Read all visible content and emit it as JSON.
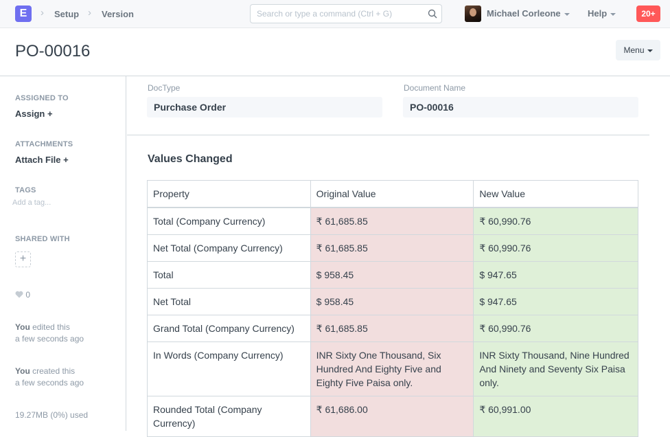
{
  "navbar": {
    "logo_letter": "E",
    "breadcrumbs": [
      "Setup",
      "Version"
    ],
    "search_placeholder": "Search or type a command (Ctrl + G)",
    "user_name": "Michael Corleone",
    "help_label": "Help",
    "notification_count": "20+",
    "colors": {
      "logo": "#6f6ff0",
      "notification": "#ff5858"
    }
  },
  "page": {
    "title": "PO-00016",
    "menu_label": "Menu"
  },
  "sidebar": {
    "assigned_to_label": "ASSIGNED TO",
    "assign_link": "Assign +",
    "attachments_label": "ATTACHMENTS",
    "attach_link": "Attach File +",
    "tags_label": "TAGS",
    "tags_placeholder": "Add a tag...",
    "shared_with_label": "SHARED WITH",
    "share_add": "+",
    "likes": "0",
    "timeline": [
      {
        "who": "You",
        "action": " edited this",
        "when": "a few seconds ago"
      },
      {
        "who": "You",
        "action": " created this",
        "when": "a few seconds ago"
      }
    ],
    "usage": "19.27MB (0%) used"
  },
  "main": {
    "doctype_label": "DocType",
    "doctype_value": "Purchase Order",
    "docname_label": "Document Name",
    "docname_value": "PO-00016",
    "section_title": "Values Changed",
    "table": {
      "headers": [
        "Property",
        "Original Value",
        "New Value"
      ],
      "rows": [
        [
          "Total (Company Currency)",
          "₹ 61,685.85",
          "₹ 60,990.76"
        ],
        [
          "Net Total (Company Currency)",
          "₹ 61,685.85",
          "₹ 60,990.76"
        ],
        [
          "Total",
          "$ 958.45",
          "$ 947.65"
        ],
        [
          "Net Total",
          "$ 958.45",
          "$ 947.65"
        ],
        [
          "Grand Total (Company Currency)",
          "₹ 61,685.85",
          "₹ 60,990.76"
        ],
        [
          "In Words (Company Currency)",
          "INR Sixty One Thousand, Six Hundred And Eighty Five and Eighty Five Paisa only.",
          "INR Sixty Thousand, Nine Hundred And Ninety and Seventy Six Paisa only."
        ],
        [
          "Rounded Total (Company Currency)",
          "₹ 61,686.00",
          "₹ 60,991.00"
        ]
      ]
    },
    "colors": {
      "original_bg": "#f2dede",
      "new_bg": "#dff0d8"
    }
  }
}
